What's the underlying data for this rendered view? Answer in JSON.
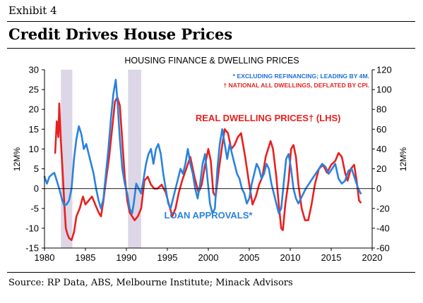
{
  "exhibit_label": "Exhibit 4",
  "title": "Credit Drives House Prices",
  "source": "Source: RP Data, ABS, Melbourne Institute; Minack Advisors",
  "chart_data": {
    "type": "line",
    "title": "HOUSING FINANCE & DWELLING PRICES",
    "notes": [
      {
        "text": "* EXCLUDING REFINANCING; LEADING BY 4M.",
        "color": "#1f6fd6"
      },
      {
        "text": "† NATIONAL ALL DWELLINGS, DEFLATED BY CPI.",
        "color": "#e8201f"
      }
    ],
    "ylabel_left": "12M%",
    "ylabel_right": "12M%",
    "xlim": [
      1980,
      2020
    ],
    "ylim_left": [
      -15,
      30
    ],
    "ylim_right": [
      -60,
      120
    ],
    "xticks": [
      1980,
      1985,
      1990,
      1995,
      2000,
      2005,
      2010,
      2015,
      2020
    ],
    "yticks_left": [
      -15,
      -10,
      -5,
      0,
      5,
      10,
      15,
      20,
      25,
      30
    ],
    "yticks_right": [
      -60,
      -40,
      -20,
      0,
      20,
      40,
      60,
      80,
      100,
      120
    ],
    "grid": false,
    "shaded_periods": [
      [
        1982.0,
        1983.4
      ],
      [
        1990.2,
        1991.8
      ]
    ],
    "shade_color": "#dcd6e6",
    "series": [
      {
        "name": "REAL DWELLING PRICES† (LHS)",
        "axis": "left",
        "color": "#e8201f",
        "label_pos": [
          2007.3,
          17.0
        ],
        "points": [
          [
            1981.3,
            9
          ],
          [
            1981.5,
            17
          ],
          [
            1981.7,
            13
          ],
          [
            1981.8,
            21.5
          ],
          [
            1982.0,
            12
          ],
          [
            1982.2,
            5
          ],
          [
            1982.4,
            -3
          ],
          [
            1982.6,
            -10
          ],
          [
            1982.8,
            -11.5
          ],
          [
            1983.0,
            -12.5
          ],
          [
            1983.3,
            -13
          ],
          [
            1983.6,
            -11
          ],
          [
            1983.9,
            -7
          ],
          [
            1984.3,
            -5
          ],
          [
            1984.7,
            -2
          ],
          [
            1985.0,
            -4
          ],
          [
            1985.4,
            -3
          ],
          [
            1985.8,
            -2
          ],
          [
            1986.2,
            -4
          ],
          [
            1986.6,
            -6
          ],
          [
            1986.9,
            -7
          ],
          [
            1987.2,
            -3
          ],
          [
            1987.5,
            2
          ],
          [
            1987.9,
            8
          ],
          [
            1988.3,
            16
          ],
          [
            1988.6,
            22
          ],
          [
            1988.9,
            23
          ],
          [
            1989.2,
            21
          ],
          [
            1989.5,
            12
          ],
          [
            1989.8,
            3
          ],
          [
            1990.1,
            -3
          ],
          [
            1990.4,
            -6
          ],
          [
            1990.7,
            -7
          ],
          [
            1991.0,
            -8
          ],
          [
            1991.4,
            -7
          ],
          [
            1991.8,
            -5
          ],
          [
            1992.2,
            2
          ],
          [
            1992.6,
            3
          ],
          [
            1993.0,
            1
          ],
          [
            1993.4,
            0
          ],
          [
            1993.8,
            0
          ],
          [
            1994.3,
            1
          ],
          [
            1994.8,
            -1
          ],
          [
            1995.2,
            -4
          ],
          [
            1995.6,
            -7
          ],
          [
            1996.0,
            -5
          ],
          [
            1996.4,
            -1
          ],
          [
            1996.8,
            2
          ],
          [
            1997.3,
            5
          ],
          [
            1997.8,
            8
          ],
          [
            1998.3,
            3
          ],
          [
            1998.8,
            -1
          ],
          [
            1999.2,
            1
          ],
          [
            1999.6,
            6
          ],
          [
            2000.0,
            10
          ],
          [
            2000.3,
            7
          ],
          [
            2000.6,
            -1
          ],
          [
            2000.9,
            -2
          ],
          [
            2001.3,
            5
          ],
          [
            2001.7,
            11
          ],
          [
            2002.0,
            15
          ],
          [
            2002.4,
            14
          ],
          [
            2002.8,
            10
          ],
          [
            2003.2,
            11
          ],
          [
            2003.6,
            13
          ],
          [
            2004.0,
            14
          ],
          [
            2004.5,
            8
          ],
          [
            2005.0,
            1
          ],
          [
            2005.4,
            -4
          ],
          [
            2005.8,
            -2
          ],
          [
            2006.2,
            1
          ],
          [
            2006.6,
            3
          ],
          [
            2007.0,
            8
          ],
          [
            2007.3,
            10
          ],
          [
            2007.6,
            12
          ],
          [
            2007.9,
            10
          ],
          [
            2008.3,
            3
          ],
          [
            2008.6,
            -4
          ],
          [
            2008.9,
            -10
          ],
          [
            2009.1,
            -10.5
          ],
          [
            2009.4,
            -4
          ],
          [
            2009.8,
            2
          ],
          [
            2010.1,
            10
          ],
          [
            2010.4,
            11
          ],
          [
            2010.7,
            8
          ],
          [
            2011.0,
            1
          ],
          [
            2011.4,
            -5
          ],
          [
            2011.8,
            -8
          ],
          [
            2012.2,
            -8
          ],
          [
            2012.6,
            -4
          ],
          [
            2013.0,
            1
          ],
          [
            2013.5,
            5
          ],
          [
            2014.0,
            6
          ],
          [
            2014.5,
            4
          ],
          [
            2015.0,
            6
          ],
          [
            2015.5,
            7
          ],
          [
            2015.9,
            9
          ],
          [
            2016.3,
            8
          ],
          [
            2016.7,
            4
          ],
          [
            2017.0,
            2
          ],
          [
            2017.4,
            5
          ],
          [
            2017.8,
            6
          ],
          [
            2018.1,
            2
          ],
          [
            2018.4,
            -3
          ],
          [
            2018.6,
            -3.5
          ]
        ]
      },
      {
        "name": "LOAN APPROVALS*",
        "axis": "right",
        "color": "#2a82dd",
        "label_pos": [
          2000.0,
          -7.5
        ],
        "points": [
          [
            1980.0,
            12
          ],
          [
            1980.3,
            5
          ],
          [
            1980.6,
            12
          ],
          [
            1981.0,
            15
          ],
          [
            1981.2,
            16
          ],
          [
            1981.5,
            8
          ],
          [
            1981.8,
            0
          ],
          [
            1982.1,
            -10
          ],
          [
            1982.4,
            -17
          ],
          [
            1982.7,
            -16
          ],
          [
            1983.0,
            -12
          ],
          [
            1983.3,
            0
          ],
          [
            1983.6,
            30
          ],
          [
            1983.9,
            50
          ],
          [
            1984.2,
            63
          ],
          [
            1984.5,
            55
          ],
          [
            1984.8,
            40
          ],
          [
            1985.1,
            45
          ],
          [
            1985.4,
            35
          ],
          [
            1985.7,
            25
          ],
          [
            1986.0,
            15
          ],
          [
            1986.3,
            0
          ],
          [
            1986.6,
            -12
          ],
          [
            1986.9,
            -20
          ],
          [
            1987.2,
            -10
          ],
          [
            1987.5,
            15
          ],
          [
            1987.8,
            40
          ],
          [
            1988.1,
            70
          ],
          [
            1988.4,
            95
          ],
          [
            1988.7,
            110
          ],
          [
            1988.9,
            90
          ],
          [
            1989.2,
            50
          ],
          [
            1989.5,
            20
          ],
          [
            1989.8,
            5
          ],
          [
            1990.1,
            -5
          ],
          [
            1990.4,
            -20
          ],
          [
            1990.7,
            -25
          ],
          [
            1990.9,
            -15
          ],
          [
            1991.2,
            5
          ],
          [
            1991.5,
            0
          ],
          [
            1991.8,
            -5
          ],
          [
            1992.1,
            10
          ],
          [
            1992.4,
            25
          ],
          [
            1992.7,
            35
          ],
          [
            1993.0,
            40
          ],
          [
            1993.3,
            25
          ],
          [
            1993.6,
            40
          ],
          [
            1993.9,
            45
          ],
          [
            1994.2,
            35
          ],
          [
            1994.5,
            15
          ],
          [
            1994.8,
            0
          ],
          [
            1995.1,
            -15
          ],
          [
            1995.4,
            -20
          ],
          [
            1995.7,
            -10
          ],
          [
            1996.0,
            0
          ],
          [
            1996.3,
            10
          ],
          [
            1996.6,
            20
          ],
          [
            1996.9,
            15
          ],
          [
            1997.2,
            25
          ],
          [
            1997.5,
            40
          ],
          [
            1997.8,
            25
          ],
          [
            1998.1,
            15
          ],
          [
            1998.4,
            0
          ],
          [
            1998.7,
            -10
          ],
          [
            1999.0,
            5
          ],
          [
            1999.3,
            25
          ],
          [
            1999.6,
            35
          ],
          [
            1999.9,
            10
          ],
          [
            2000.2,
            -15
          ],
          [
            2000.5,
            -25
          ],
          [
            2000.8,
            -20
          ],
          [
            2001.1,
            20
          ],
          [
            2001.4,
            45
          ],
          [
            2001.7,
            60
          ],
          [
            2002.0,
            45
          ],
          [
            2002.3,
            30
          ],
          [
            2002.6,
            45
          ],
          [
            2002.9,
            35
          ],
          [
            2003.2,
            25
          ],
          [
            2003.5,
            15
          ],
          [
            2003.8,
            10
          ],
          [
            2004.1,
            0
          ],
          [
            2004.4,
            -5
          ],
          [
            2004.7,
            -15
          ],
          [
            2005.0,
            -10
          ],
          [
            2005.3,
            5
          ],
          [
            2005.6,
            15
          ],
          [
            2005.9,
            25
          ],
          [
            2006.2,
            20
          ],
          [
            2006.5,
            10
          ],
          [
            2006.8,
            15
          ],
          [
            2007.1,
            25
          ],
          [
            2007.4,
            20
          ],
          [
            2007.7,
            5
          ],
          [
            2008.0,
            -5
          ],
          [
            2008.3,
            -15
          ],
          [
            2008.6,
            -25
          ],
          [
            2008.9,
            -20
          ],
          [
            2009.2,
            5
          ],
          [
            2009.5,
            30
          ],
          [
            2009.8,
            35
          ],
          [
            2010.1,
            20
          ],
          [
            2010.4,
            0
          ],
          [
            2010.7,
            -10
          ],
          [
            2011.0,
            -15
          ],
          [
            2011.3,
            -10
          ],
          [
            2011.6,
            -5
          ],
          [
            2011.9,
            0
          ],
          [
            2012.3,
            5
          ],
          [
            2012.7,
            10
          ],
          [
            2013.1,
            15
          ],
          [
            2013.5,
            20
          ],
          [
            2013.9,
            25
          ],
          [
            2014.3,
            22
          ],
          [
            2014.7,
            15
          ],
          [
            2015.1,
            20
          ],
          [
            2015.5,
            25
          ],
          [
            2015.9,
            10
          ],
          [
            2016.3,
            5
          ],
          [
            2016.7,
            8
          ],
          [
            2017.1,
            18
          ],
          [
            2017.5,
            20
          ],
          [
            2017.9,
            10
          ],
          [
            2018.3,
            0
          ],
          [
            2018.6,
            -5
          ]
        ]
      }
    ]
  }
}
